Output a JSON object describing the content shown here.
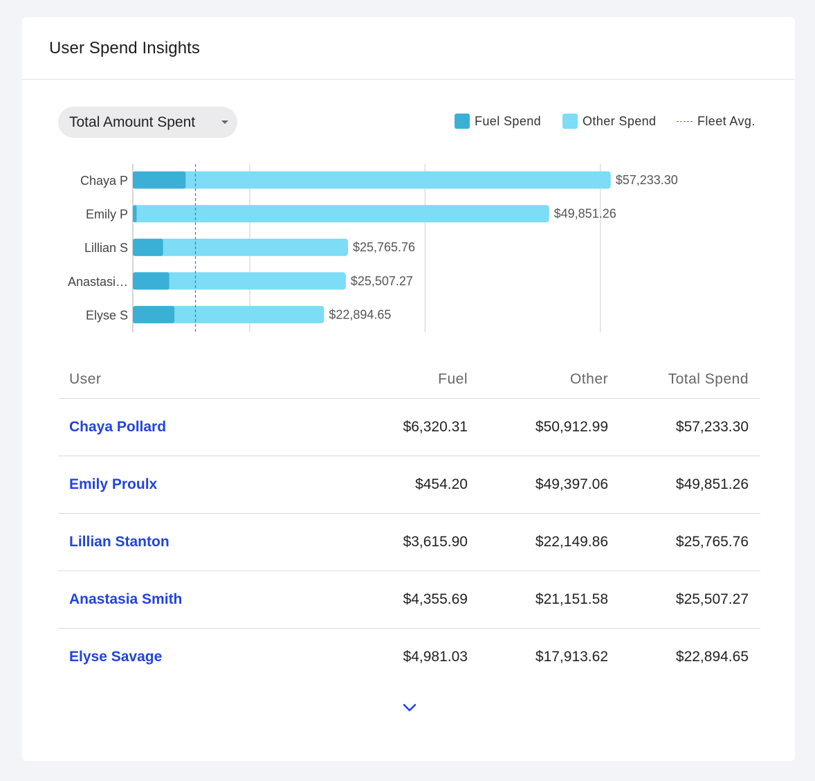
{
  "card": {
    "title": "User Spend Insights"
  },
  "metric_select": {
    "value": "Total Amount Spent"
  },
  "legend": {
    "fuel": "Fuel Spend",
    "other": "Other Spend",
    "fleet_avg": "Fleet Avg."
  },
  "colors": {
    "fuel": "#3bb0d6",
    "other": "#7ddcf6",
    "fleet_avg": "#4a6fe0",
    "link": "#2244dd",
    "grid": "#dedee2"
  },
  "chart_data": {
    "type": "bar",
    "orientation": "horizontal",
    "stacked": true,
    "categories": [
      "Chaya P",
      "Emily P",
      "Lillian S",
      "Anastasi…",
      "Elyse S"
    ],
    "series": [
      {
        "name": "Fuel Spend",
        "values": [
          6320.31,
          454.2,
          3615.9,
          4355.69,
          4981.03
        ]
      },
      {
        "name": "Other Spend",
        "values": [
          50912.99,
          49397.06,
          22149.86,
          21151.58,
          17913.62
        ]
      }
    ],
    "totals_labels": [
      "$57,233.30",
      "$49,851.26",
      "$25,765.76",
      "$25,507.27",
      "$22,894.65"
    ],
    "totals": [
      57233.3,
      49851.26,
      25765.76,
      25507.27,
      22894.65
    ],
    "fleet_avg": 7500,
    "xlim": [
      0,
      58000
    ],
    "gridlines": [
      0,
      14000,
      35000,
      56000
    ],
    "legend_position": "top-right"
  },
  "table": {
    "headers": {
      "user": "User",
      "fuel": "Fuel",
      "other": "Other",
      "total": "Total Spend"
    },
    "rows": [
      {
        "user": "Chaya Pollard",
        "fuel": "$6,320.31",
        "other": "$50,912.99",
        "total": "$57,233.30"
      },
      {
        "user": "Emily Proulx",
        "fuel": "$454.20",
        "other": "$49,397.06",
        "total": "$49,851.26"
      },
      {
        "user": "Lillian Stanton",
        "fuel": "$3,615.90",
        "other": "$22,149.86",
        "total": "$25,765.76"
      },
      {
        "user": "Anastasia Smith",
        "fuel": "$4,355.69",
        "other": "$21,151.58",
        "total": "$25,507.27"
      },
      {
        "user": "Elyse Savage",
        "fuel": "$4,981.03",
        "other": "$17,913.62",
        "total": "$22,894.65"
      }
    ]
  },
  "expand_icon": "chevron-down-icon"
}
